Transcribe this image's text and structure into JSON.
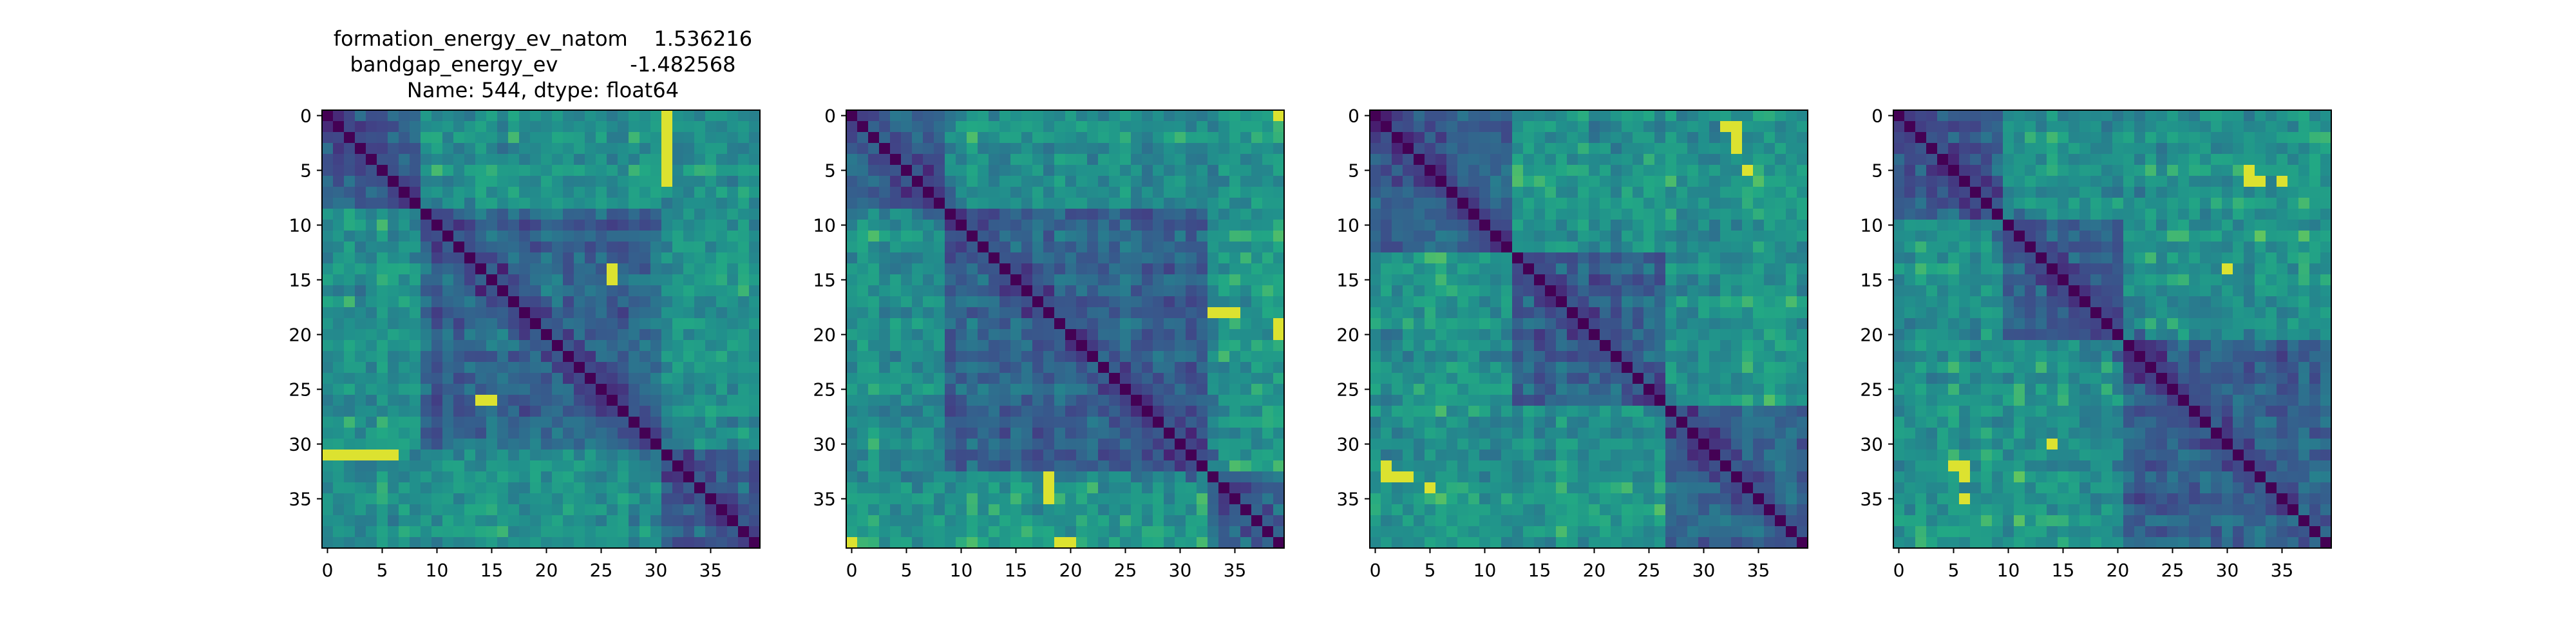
{
  "figure": {
    "title_lines": [
      "formation_energy_ev_natom    1.536216",
      "bandgap_energy_ev           -1.482568",
      "Name: 544, dtype: float64"
    ]
  },
  "chart_data": [
    {
      "type": "heatmap",
      "n": 40,
      "seed": 11,
      "title": "formation_energy_ev_natom    1.536216\nbandgap_energy_ev           -1.482568\nName: 544, dtype: float64",
      "xticks": [
        0,
        5,
        10,
        15,
        20,
        25,
        30,
        35
      ],
      "yticks": [
        0,
        5,
        10,
        15,
        20,
        25,
        30,
        35
      ],
      "xlim": [
        -0.5,
        39.5
      ],
      "ylim": [
        39.5,
        -0.5
      ],
      "colormap": "viridis",
      "diagonal": 0,
      "grid": false,
      "blocks": [
        [
          0,
          8
        ],
        [
          9,
          30
        ],
        [
          31,
          39
        ]
      ],
      "bright_cells": [
        [
          31,
          0
        ],
        [
          31,
          1
        ],
        [
          31,
          2
        ],
        [
          31,
          3
        ],
        [
          31,
          4
        ],
        [
          31,
          5
        ],
        [
          31,
          6
        ],
        [
          0,
          31
        ],
        [
          1,
          31
        ],
        [
          2,
          31
        ],
        [
          3,
          31
        ],
        [
          4,
          31
        ],
        [
          5,
          31
        ],
        [
          6,
          31
        ],
        [
          14,
          26
        ],
        [
          15,
          26
        ],
        [
          26,
          14
        ],
        [
          26,
          15
        ]
      ]
    },
    {
      "type": "heatmap",
      "n": 40,
      "seed": 23,
      "title": "",
      "xticks": [
        0,
        5,
        10,
        15,
        20,
        25,
        30,
        35
      ],
      "yticks": [
        0,
        5,
        10,
        15,
        20,
        25,
        30,
        35
      ],
      "xlim": [
        -0.5,
        39.5
      ],
      "ylim": [
        39.5,
        -0.5
      ],
      "colormap": "viridis",
      "diagonal": 0,
      "grid": false,
      "blocks": [
        [
          0,
          8
        ],
        [
          9,
          32
        ],
        [
          33,
          39
        ]
      ],
      "bright_cells": [
        [
          39,
          19
        ],
        [
          39,
          20
        ],
        [
          19,
          39
        ],
        [
          20,
          39
        ],
        [
          18,
          33
        ],
        [
          18,
          34
        ],
        [
          18,
          35
        ],
        [
          33,
          18
        ],
        [
          34,
          18
        ],
        [
          35,
          18
        ],
        [
          39,
          0
        ],
        [
          0,
          39
        ]
      ]
    },
    {
      "type": "heatmap",
      "n": 40,
      "seed": 37,
      "title": "",
      "xticks": [
        0,
        5,
        10,
        15,
        20,
        25,
        30,
        35
      ],
      "yticks": [
        0,
        5,
        10,
        15,
        20,
        25,
        30,
        35
      ],
      "xlim": [
        -0.5,
        39.5
      ],
      "ylim": [
        39.5,
        -0.5
      ],
      "colormap": "viridis",
      "diagonal": 0,
      "grid": false,
      "blocks": [
        [
          0,
          12
        ],
        [
          13,
          26
        ],
        [
          27,
          39
        ]
      ],
      "bright_cells": [
        [
          33,
          2
        ],
        [
          33,
          3
        ],
        [
          2,
          33
        ],
        [
          3,
          33
        ],
        [
          1,
          32
        ],
        [
          1,
          33
        ],
        [
          32,
          1
        ],
        [
          33,
          1
        ],
        [
          34,
          5
        ],
        [
          5,
          34
        ]
      ]
    },
    {
      "type": "heatmap",
      "n": 40,
      "seed": 53,
      "title": "",
      "xticks": [
        0,
        5,
        10,
        15,
        20,
        25,
        30,
        35
      ],
      "yticks": [
        0,
        5,
        10,
        15,
        20,
        25,
        30,
        35
      ],
      "xlim": [
        -0.5,
        39.5
      ],
      "ylim": [
        39.5,
        -0.5
      ],
      "colormap": "viridis",
      "diagonal": 0,
      "grid": false,
      "blocks": [
        [
          0,
          9
        ],
        [
          10,
          20
        ],
        [
          21,
          39
        ]
      ],
      "bright_cells": [
        [
          6,
          32
        ],
        [
          5,
          32
        ],
        [
          32,
          6
        ],
        [
          32,
          5
        ],
        [
          33,
          6
        ],
        [
          6,
          33
        ],
        [
          30,
          14
        ],
        [
          14,
          30
        ],
        [
          35,
          6
        ],
        [
          6,
          35
        ]
      ]
    }
  ]
}
